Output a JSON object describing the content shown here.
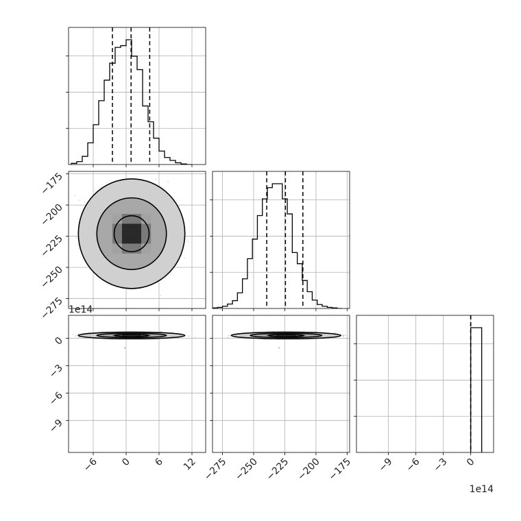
{
  "chart_data": {
    "type": "corner",
    "grid": true,
    "parameters": [
      {
        "index": 0,
        "range": [
          -10.5,
          14.5
        ],
        "ticks": [
          -6,
          0,
          6,
          12
        ],
        "tick_labels": [
          "−6",
          "0",
          "6",
          "12"
        ]
      },
      {
        "index": 1,
        "range": [
          -283,
          -173
        ],
        "ticks": [
          -275,
          -250,
          -225,
          -200,
          -175
        ],
        "tick_labels": [
          "−275",
          "−250",
          "−225",
          "−200",
          "−175"
        ]
      },
      {
        "index": 2,
        "range": [
          -12.5,
          2.5
        ],
        "ticks": [
          -9,
          -6,
          -3,
          0
        ],
        "tick_labels": [
          "−9",
          "−6",
          "−3",
          "0"
        ],
        "offset_label": "1e14"
      }
    ],
    "histograms": [
      {
        "parameter": 0,
        "bin_edges": [
          -10,
          -9,
          -8,
          -7,
          -6,
          -5,
          -4,
          -3,
          -2,
          -1,
          0,
          1,
          2,
          3,
          4,
          5,
          6,
          7,
          8,
          9,
          10,
          11,
          12
        ],
        "counts": [
          2,
          5,
          14,
          37,
          68,
          109,
          144,
          173,
          200,
          203,
          213,
          185,
          162,
          100,
          73,
          45,
          23,
          12,
          7,
          3,
          1,
          0
        ],
        "quantiles": [
          -2.5,
          0.9,
          4.3
        ]
      },
      {
        "parameter": 1,
        "bin_edges": [
          -283,
          -279,
          -275,
          -271,
          -267,
          -263,
          -259,
          -255,
          -251,
          -247,
          -243,
          -239,
          -235,
          -231,
          -227,
          -223,
          -219,
          -215,
          -211,
          -207,
          -203,
          -199,
          -195,
          -191,
          -187,
          -183,
          -179
        ],
        "counts": [
          1,
          2,
          4,
          8,
          14,
          28,
          53,
          89,
          124,
          166,
          196,
          216,
          223,
          223,
          196,
          169,
          100,
          80,
          50,
          30,
          15,
          7,
          4,
          2,
          1,
          0
        ],
        "quantiles": [
          -239.5,
          -224.5,
          -210.5
        ]
      },
      {
        "parameter": 2,
        "bin_edges": [
          0,
          1.2
        ],
        "counts": [
          1000
        ],
        "quantiles": [
          0,
          0,
          0
        ]
      }
    ],
    "density_panels": [
      {
        "x_param": 0,
        "y_param": 1,
        "center": [
          1,
          -223
        ],
        "spread": [
          3.2,
          14.5
        ],
        "contour_levels": [
          0.39,
          0.86,
          0.99
        ]
      },
      {
        "x_param": 0,
        "y_param": 2,
        "center": [
          1,
          0.3
        ],
        "spread": [
          3.2,
          0.12
        ],
        "contour_levels": [
          0.39,
          0.86,
          0.99
        ]
      },
      {
        "x_param": 1,
        "y_param": 2,
        "center": [
          -224,
          0.3
        ],
        "spread": [
          14.5,
          0.12
        ],
        "contour_levels": [
          0.39,
          0.86,
          0.99
        ]
      }
    ]
  }
}
